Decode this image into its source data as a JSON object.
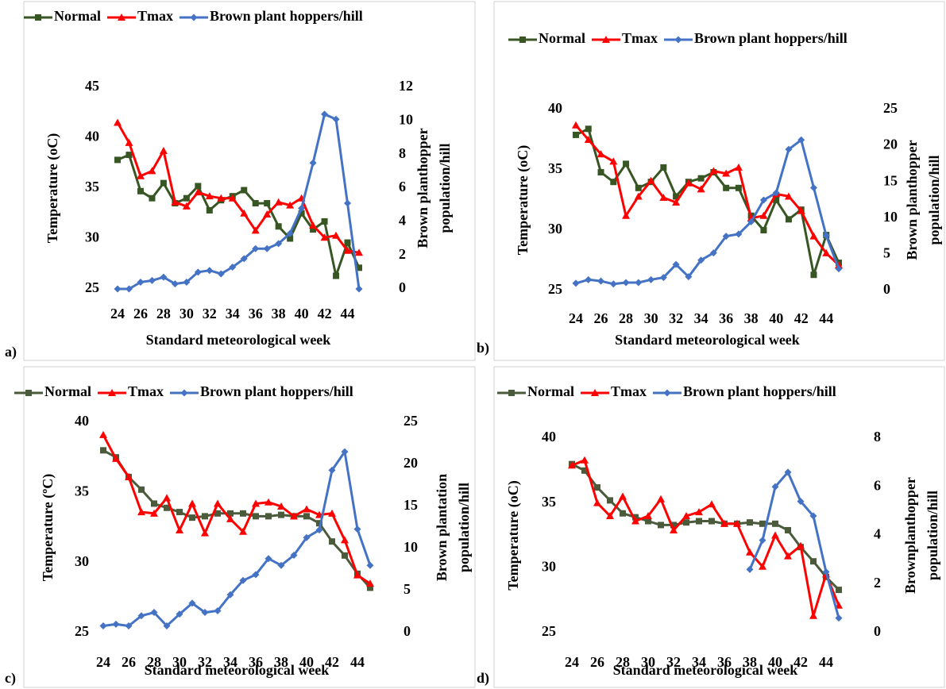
{
  "chart_data": [
    {
      "type": "line",
      "panel_label": "a)",
      "y_label": "Temperature (oC)",
      "y2_label": [
        "Brown planthopper",
        "population/hill"
      ],
      "x_label": "Standard meteorological week",
      "categories": [
        24,
        null,
        26,
        null,
        28,
        null,
        30,
        null,
        32,
        null,
        34,
        null,
        36,
        null,
        38,
        null,
        40,
        null,
        42,
        null,
        44,
        null
      ],
      "ylim": [
        25,
        45
      ],
      "yticks": [
        25,
        30,
        35,
        40,
        45
      ],
      "y2lim": [
        0,
        12
      ],
      "y2ticks": [
        0,
        2,
        4,
        6,
        8,
        10,
        12
      ],
      "series": [
        {
          "name": "Normal",
          "color": "#375623",
          "marker": "square",
          "values": [
            37.8,
            38.3,
            34.7,
            34.0,
            35.5,
            33.5,
            34.0,
            35.2,
            32.8,
            33.8,
            34.2,
            34.8,
            33.5,
            33.5,
            31.2,
            30.0,
            32.5,
            30.9,
            31.7,
            26.3,
            29.6,
            27.1
          ]
        },
        {
          "name": "Tmax",
          "color": "#ff0000",
          "marker": "triangle",
          "values": [
            41.5,
            39.5,
            36.2,
            36.7,
            38.7,
            33.6,
            33.2,
            34.6,
            34.2,
            34.0,
            34.0,
            32.5,
            30.8,
            32.4,
            33.6,
            33.3,
            34.0,
            31.3,
            30.1,
            30.3,
            28.8,
            28.6
          ]
        },
        {
          "name": "Brown plant hoppers/hill",
          "color": "#4472c4",
          "marker": "diamond",
          "axis": "y2",
          "values": [
            0,
            0,
            0.4,
            0.5,
            0.7,
            0.3,
            0.4,
            1.0,
            1.1,
            0.9,
            1.3,
            1.8,
            2.4,
            2.4,
            2.7,
            3.3,
            4.8,
            7.5,
            10.4,
            10.1,
            5.1,
            0
          ]
        }
      ]
    },
    {
      "type": "line",
      "panel_label": "b)",
      "y_label": "Temperature (oC)",
      "y2_label": [
        "Brown planthopper",
        "population/hill"
      ],
      "x_label": "Standard meteorological week",
      "categories": [
        24,
        null,
        26,
        null,
        28,
        null,
        30,
        null,
        32,
        null,
        34,
        null,
        36,
        null,
        38,
        null,
        40,
        null,
        42,
        null,
        44,
        null
      ],
      "ylim": [
        25,
        40
      ],
      "yticks": [
        25,
        30,
        35,
        40
      ],
      "y2lim": [
        0,
        25
      ],
      "y2ticks": [
        0,
        5,
        10,
        15,
        20,
        25
      ],
      "series": [
        {
          "name": "Normal",
          "color": "#375623",
          "marker": "square",
          "values": [
            37.9,
            38.4,
            34.8,
            34.0,
            35.5,
            33.5,
            34.0,
            35.2,
            32.8,
            34.0,
            34.3,
            34.8,
            33.5,
            33.5,
            31.2,
            30.0,
            32.5,
            30.9,
            31.7,
            26.3,
            29.6,
            27.3
          ]
        },
        {
          "name": "Tmax",
          "color": "#ff0000",
          "marker": "triangle",
          "values": [
            38.7,
            37.5,
            36.3,
            35.7,
            31.2,
            32.8,
            34.1,
            32.7,
            32.3,
            33.9,
            33.4,
            34.9,
            34.7,
            35.2,
            31.0,
            31.2,
            33.0,
            32.8,
            31.6,
            29.5,
            28.1,
            27.1
          ]
        },
        {
          "name": "Brown plant hoppers/hill",
          "color": "#4472c4",
          "marker": "diamond",
          "axis": "y2",
          "values": [
            1.0,
            1.5,
            1.3,
            0.9,
            1.1,
            1.1,
            1.5,
            1.8,
            3.6,
            1.9,
            4.2,
            5.2,
            7.5,
            7.8,
            9.5,
            12.5,
            13.5,
            19.5,
            20.8,
            14.2,
            7.6,
            3.0
          ]
        }
      ]
    },
    {
      "type": "line",
      "panel_label": "c)",
      "y_label": "Temperature (ºC)",
      "y2_label": [
        "Brown plantation",
        "population/hill"
      ],
      "x_label": "Standard meteorological week",
      "categories": [
        24,
        null,
        26,
        null,
        28,
        null,
        30,
        null,
        32,
        null,
        34,
        null,
        36,
        null,
        38,
        null,
        40,
        null,
        42,
        null,
        44,
        null
      ],
      "ylim": [
        25,
        40
      ],
      "yticks": [
        25,
        30,
        35,
        40
      ],
      "y2lim": [
        0,
        25
      ],
      "y2ticks": [
        0,
        5,
        10,
        15,
        20,
        25
      ],
      "series": [
        {
          "name": "Normal",
          "color": "#4a5a3a",
          "marker": "square",
          "values": [
            38.0,
            37.5,
            36.1,
            35.2,
            34.2,
            33.9,
            33.6,
            33.2,
            33.3,
            33.5,
            33.5,
            33.5,
            33.3,
            33.3,
            33.4,
            33.3,
            33.3,
            32.8,
            31.5,
            30.5,
            29.2,
            28.2
          ]
        },
        {
          "name": "Tmax",
          "color": "#ff0000",
          "marker": "triangle",
          "values": [
            39.1,
            37.4,
            36.1,
            33.6,
            33.5,
            34.6,
            32.3,
            34.2,
            32.1,
            34.2,
            33.1,
            32.2,
            34.2,
            34.3,
            34.0,
            33.3,
            33.8,
            33.4,
            33.5,
            31.6,
            29.1,
            28.5
          ]
        },
        {
          "name": "Brown plant hoppers/hill",
          "color": "#4472c4",
          "marker": "diamond",
          "axis": "y2",
          "values": [
            0.8,
            1.0,
            0.8,
            2.0,
            2.4,
            0.8,
            2.2,
            3.5,
            2.4,
            2.6,
            4.5,
            6.2,
            6.9,
            8.8,
            8.0,
            9.2,
            11.3,
            12.2,
            19.3,
            21.5,
            12.3,
            8.0
          ]
        }
      ]
    },
    {
      "type": "line",
      "panel_label": "d)",
      "y_label": "Temperature (oC)",
      "y2_label": [
        "Brownplanthopper",
        "population/hill"
      ],
      "x_label": "Standard meteorological week",
      "categories": [
        24,
        null,
        26,
        null,
        28,
        null,
        30,
        null,
        32,
        null,
        34,
        null,
        36,
        null,
        38,
        null,
        40,
        null,
        42,
        null,
        44,
        null
      ],
      "ylim": [
        25,
        40
      ],
      "yticks": [
        25,
        30,
        35,
        40
      ],
      "y2lim": [
        0,
        8
      ],
      "y2ticks": [
        0,
        2,
        4,
        6,
        8
      ],
      "series": [
        {
          "name": "Normal",
          "color": "#4a5a3a",
          "marker": "square",
          "values": [
            38.0,
            37.5,
            36.2,
            35.2,
            34.2,
            33.9,
            33.6,
            33.3,
            33.3,
            33.5,
            33.6,
            33.6,
            33.4,
            33.4,
            33.5,
            33.4,
            33.4,
            32.9,
            31.6,
            30.5,
            29.3,
            28.3
          ]
        },
        {
          "name": "Tmax",
          "color": "#ff0000",
          "marker": "triangle",
          "values": [
            37.9,
            38.3,
            35.0,
            34.0,
            35.5,
            33.6,
            34.0,
            35.3,
            32.9,
            34.0,
            34.3,
            34.9,
            33.4,
            33.4,
            31.2,
            30.1,
            32.5,
            30.9,
            31.7,
            26.3,
            29.5,
            27.1
          ]
        },
        {
          "name": "Brown plant hoppers/hill",
          "color": "#4472c4",
          "marker": "diamond",
          "axis": "y2",
          "values": [
            null,
            null,
            null,
            null,
            null,
            null,
            null,
            null,
            null,
            null,
            null,
            null,
            null,
            null,
            2.6,
            3.8,
            6.0,
            6.6,
            5.4,
            4.8,
            2.5,
            0.6
          ]
        }
      ]
    }
  ]
}
